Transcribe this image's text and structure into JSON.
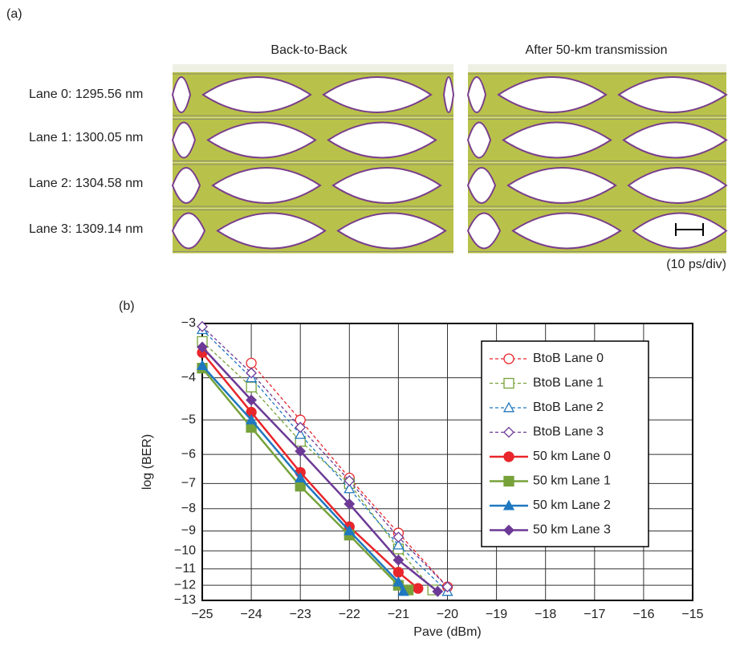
{
  "panel_a": {
    "label": "(a)",
    "columns": [
      "Back-to-Back",
      "After 50-km transmission"
    ],
    "lanes": [
      "Lane 0: 1295.56 nm",
      "Lane 1: 1300.05 nm",
      "Lane 2: 1304.58 nm",
      "Lane 3: 1309.14 nm"
    ],
    "scale_note": "(10 ps/div)"
  },
  "chart_data": {
    "type": "line",
    "panel_label": "(b)",
    "x_label": "Pave (dBm)",
    "y_label": "log (BER)",
    "xlim": [
      -25,
      -15
    ],
    "ylim": [
      -3,
      -13
    ],
    "yscale": "neglog",
    "grid": true,
    "legend": "upper right",
    "xticks": [
      {
        "value": -25,
        "label": "−25"
      },
      {
        "value": -24,
        "label": "−24"
      },
      {
        "value": -23,
        "label": "−23"
      },
      {
        "value": -22,
        "label": "−22"
      },
      {
        "value": -21,
        "label": "−21"
      },
      {
        "value": -20,
        "label": "−20"
      },
      {
        "value": -19,
        "label": "−19"
      },
      {
        "value": -18,
        "label": "−18"
      },
      {
        "value": -17,
        "label": "−17"
      },
      {
        "value": -16,
        "label": "−16"
      },
      {
        "value": -15,
        "label": "−15"
      }
    ],
    "yticks": [
      {
        "value": -3,
        "label": "−3"
      },
      {
        "value": -4,
        "label": "−4"
      },
      {
        "value": -5,
        "label": "−5"
      },
      {
        "value": -6,
        "label": "−6"
      },
      {
        "value": -7,
        "label": "−7"
      },
      {
        "value": -8,
        "label": "−8"
      },
      {
        "value": -9,
        "label": "−9"
      },
      {
        "value": -10,
        "label": "−10"
      },
      {
        "value": -11,
        "label": "−11"
      },
      {
        "value": -12,
        "label": "−12"
      },
      {
        "value": -13,
        "label": "−13"
      }
    ],
    "series": [
      {
        "name": "BtoB Lane 0",
        "color": "#e8262b",
        "dashed": true,
        "marker": "circle",
        "filled": false,
        "x": [
          -24,
          -23,
          -22,
          -21,
          -20
        ],
        "values": [
          -3.7,
          -5.0,
          -6.8,
          -9.1,
          -12.1
        ]
      },
      {
        "name": "BtoB Lane 1",
        "color": "#77a23a",
        "dashed": true,
        "marker": "square",
        "filled": false,
        "x": [
          -25,
          -24,
          -23,
          -22,
          -21,
          -20.3
        ],
        "values": [
          -3.3,
          -4.2,
          -5.6,
          -7.0,
          -9.9,
          -12.3
        ]
      },
      {
        "name": "BtoB Lane 2",
        "color": "#1f78c0",
        "dashed": true,
        "marker": "triangle",
        "filled": false,
        "x": [
          -25,
          -24,
          -23,
          -22,
          -21,
          -20
        ],
        "values": [
          -3.1,
          -4.0,
          -5.4,
          -7.2,
          -9.7,
          -12.4
        ]
      },
      {
        "name": "BtoB Lane 3",
        "color": "#6c3a96",
        "dashed": true,
        "marker": "diamond",
        "filled": false,
        "x": [
          -25,
          -24,
          -23,
          -22,
          -21,
          -20
        ],
        "values": [
          -3.05,
          -3.9,
          -5.2,
          -6.9,
          -9.3,
          -12.1
        ]
      },
      {
        "name": "50 km Lane 0",
        "color": "#e8262b",
        "dashed": false,
        "marker": "circle",
        "filled": true,
        "x": [
          -25,
          -24,
          -23,
          -22,
          -21,
          -20.6
        ],
        "values": [
          -3.5,
          -4.8,
          -6.6,
          -8.8,
          -11.2,
          -12.2
        ]
      },
      {
        "name": "50 km Lane 1",
        "color": "#77a23a",
        "dashed": false,
        "marker": "square",
        "filled": true,
        "x": [
          -25,
          -24,
          -23,
          -22,
          -21,
          -20.8
        ],
        "values": [
          -3.8,
          -5.2,
          -7.1,
          -9.2,
          -12.0,
          -12.3
        ]
      },
      {
        "name": "50 km Lane 2",
        "color": "#1f78c0",
        "dashed": false,
        "marker": "triangle",
        "filled": true,
        "x": [
          -25,
          -24,
          -23,
          -22,
          -21,
          -20.9
        ],
        "values": [
          -3.75,
          -5.0,
          -6.8,
          -9.0,
          -11.8,
          -12.4
        ]
      },
      {
        "name": "50 km Lane 3",
        "color": "#6c3a96",
        "dashed": false,
        "marker": "diamond",
        "filled": true,
        "x": [
          -25,
          -24,
          -23,
          -22,
          -21,
          -20.2
        ],
        "values": [
          -3.4,
          -4.5,
          -5.9,
          -7.8,
          -10.5,
          -12.4
        ]
      }
    ]
  }
}
